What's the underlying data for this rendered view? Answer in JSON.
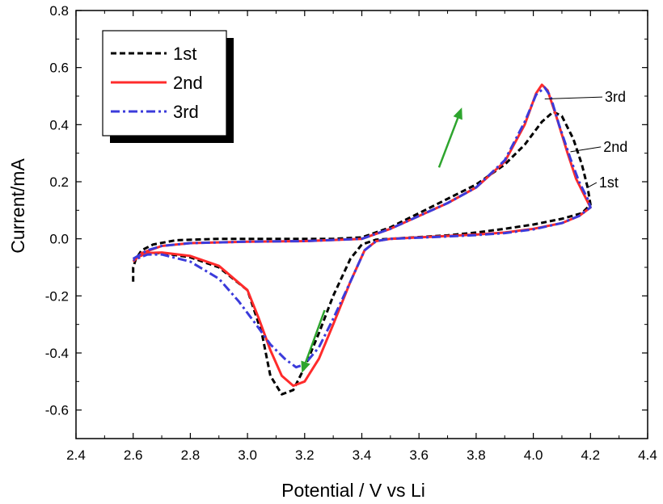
{
  "chart_data": {
    "type": "line",
    "title": "",
    "xlabel": "Potential / V vs Li",
    "ylabel": "Current/mA",
    "xlim": [
      2.4,
      4.4
    ],
    "ylim": [
      -0.7,
      0.8
    ],
    "x_ticks": [
      2.4,
      2.6,
      2.8,
      3.0,
      3.2,
      3.4,
      3.6,
      3.8,
      4.0,
      4.2,
      4.4
    ],
    "y_ticks": [
      -0.6,
      -0.4,
      -0.2,
      0.0,
      0.2,
      0.4,
      0.6,
      0.8
    ],
    "x_tick_labels": [
      "2.4",
      "2.6",
      "2.8",
      "3.0",
      "3.2",
      "3.4",
      "3.6",
      "3.8",
      "4.0",
      "4.2",
      "4.4"
    ],
    "y_tick_labels": [
      "-0.6",
      "-0.4",
      "-0.2",
      "0.0",
      "0.2",
      "0.4",
      "0.6",
      "0.8"
    ],
    "grid": false,
    "legend_position": "top-left",
    "series": [
      {
        "name": "1st",
        "color": "#000000",
        "dash": "dashed",
        "points": [
          [
            2.6,
            -0.15
          ],
          [
            2.6,
            -0.1
          ],
          [
            2.61,
            -0.07
          ],
          [
            2.63,
            -0.04
          ],
          [
            2.67,
            -0.02
          ],
          [
            2.75,
            -0.005
          ],
          [
            2.9,
            0.0
          ],
          [
            3.1,
            0.0
          ],
          [
            3.3,
            0.0
          ],
          [
            3.4,
            0.005
          ],
          [
            3.5,
            0.04
          ],
          [
            3.6,
            0.09
          ],
          [
            3.7,
            0.14
          ],
          [
            3.8,
            0.19
          ],
          [
            3.9,
            0.26
          ],
          [
            3.97,
            0.33
          ],
          [
            4.03,
            0.41
          ],
          [
            4.07,
            0.445
          ],
          [
            4.1,
            0.43
          ],
          [
            4.14,
            0.35
          ],
          [
            4.17,
            0.26
          ],
          [
            4.19,
            0.18
          ],
          [
            4.2,
            0.12
          ],
          [
            4.17,
            0.09
          ],
          [
            4.1,
            0.07
          ],
          [
            4.0,
            0.05
          ],
          [
            3.9,
            0.035
          ],
          [
            3.8,
            0.022
          ],
          [
            3.7,
            0.012
          ],
          [
            3.6,
            0.006
          ],
          [
            3.5,
            0.0
          ],
          [
            3.45,
            -0.003
          ],
          [
            3.4,
            -0.02
          ],
          [
            3.36,
            -0.07
          ],
          [
            3.3,
            -0.2
          ],
          [
            3.25,
            -0.33
          ],
          [
            3.2,
            -0.45
          ],
          [
            3.16,
            -0.53
          ],
          [
            3.12,
            -0.545
          ],
          [
            3.08,
            -0.48
          ],
          [
            3.05,
            -0.33
          ],
          [
            3.0,
            -0.18
          ],
          [
            2.9,
            -0.1
          ],
          [
            2.8,
            -0.065
          ],
          [
            2.7,
            -0.05
          ],
          [
            2.65,
            -0.05
          ],
          [
            2.6,
            -0.07
          ]
        ]
      },
      {
        "name": "2nd",
        "color": "#ff2b2b",
        "dash": "solid",
        "points": [
          [
            2.6,
            -0.08
          ],
          [
            2.63,
            -0.05
          ],
          [
            2.7,
            -0.025
          ],
          [
            2.8,
            -0.015
          ],
          [
            3.0,
            -0.01
          ],
          [
            3.2,
            -0.008
          ],
          [
            3.4,
            0.0
          ],
          [
            3.5,
            0.035
          ],
          [
            3.6,
            0.08
          ],
          [
            3.7,
            0.125
          ],
          [
            3.8,
            0.18
          ],
          [
            3.9,
            0.27
          ],
          [
            3.97,
            0.4
          ],
          [
            4.01,
            0.51
          ],
          [
            4.03,
            0.54
          ],
          [
            4.05,
            0.52
          ],
          [
            4.08,
            0.43
          ],
          [
            4.12,
            0.3
          ],
          [
            4.15,
            0.21
          ],
          [
            4.18,
            0.15
          ],
          [
            4.2,
            0.11
          ],
          [
            4.16,
            0.08
          ],
          [
            4.1,
            0.055
          ],
          [
            4.0,
            0.035
          ],
          [
            3.9,
            0.022
          ],
          [
            3.8,
            0.015
          ],
          [
            3.7,
            0.01
          ],
          [
            3.6,
            0.005
          ],
          [
            3.5,
            0.0
          ],
          [
            3.45,
            -0.008
          ],
          [
            3.41,
            -0.04
          ],
          [
            3.36,
            -0.15
          ],
          [
            3.3,
            -0.3
          ],
          [
            3.25,
            -0.42
          ],
          [
            3.2,
            -0.5
          ],
          [
            3.16,
            -0.515
          ],
          [
            3.12,
            -0.48
          ],
          [
            3.08,
            -0.39
          ],
          [
            3.04,
            -0.28
          ],
          [
            3.0,
            -0.18
          ],
          [
            2.9,
            -0.095
          ],
          [
            2.8,
            -0.06
          ],
          [
            2.7,
            -0.048
          ],
          [
            2.65,
            -0.05
          ],
          [
            2.6,
            -0.07
          ]
        ]
      },
      {
        "name": "3rd",
        "color": "#3b3bdb",
        "dash": "dashdot",
        "points": [
          [
            2.6,
            -0.07
          ],
          [
            2.65,
            -0.04
          ],
          [
            2.7,
            -0.025
          ],
          [
            2.8,
            -0.015
          ],
          [
            3.0,
            -0.01
          ],
          [
            3.2,
            -0.008
          ],
          [
            3.4,
            0.0
          ],
          [
            3.5,
            0.035
          ],
          [
            3.6,
            0.08
          ],
          [
            3.7,
            0.125
          ],
          [
            3.8,
            0.18
          ],
          [
            3.9,
            0.275
          ],
          [
            3.97,
            0.41
          ],
          [
            4.01,
            0.505
          ],
          [
            4.04,
            0.53
          ],
          [
            4.06,
            0.5
          ],
          [
            4.09,
            0.4
          ],
          [
            4.13,
            0.28
          ],
          [
            4.16,
            0.2
          ],
          [
            4.19,
            0.14
          ],
          [
            4.2,
            0.11
          ],
          [
            4.16,
            0.08
          ],
          [
            4.1,
            0.055
          ],
          [
            4.0,
            0.033
          ],
          [
            3.9,
            0.02
          ],
          [
            3.8,
            0.013
          ],
          [
            3.7,
            0.008
          ],
          [
            3.6,
            0.004
          ],
          [
            3.5,
            0.0
          ],
          [
            3.45,
            -0.008
          ],
          [
            3.41,
            -0.04
          ],
          [
            3.36,
            -0.15
          ],
          [
            3.3,
            -0.28
          ],
          [
            3.25,
            -0.38
          ],
          [
            3.2,
            -0.44
          ],
          [
            3.17,
            -0.45
          ],
          [
            3.13,
            -0.42
          ],
          [
            3.08,
            -0.37
          ],
          [
            3.03,
            -0.3
          ],
          [
            2.97,
            -0.22
          ],
          [
            2.9,
            -0.14
          ],
          [
            2.8,
            -0.08
          ],
          [
            2.7,
            -0.055
          ],
          [
            2.65,
            -0.055
          ],
          [
            2.6,
            -0.075
          ]
        ]
      }
    ],
    "annotations": [
      {
        "text": "3rd",
        "x": 4.25,
        "y": 0.48,
        "leader_from": [
          4.04,
          0.49
        ]
      },
      {
        "text": "2nd",
        "x": 4.245,
        "y": 0.305,
        "leader_from": [
          4.13,
          0.305
        ]
      },
      {
        "text": "1st",
        "x": 4.23,
        "y": 0.18,
        "leader_from": [
          4.19,
          0.18
        ]
      }
    ],
    "arrows": [
      {
        "color": "#2ea52e",
        "from": [
          3.67,
          0.25
        ],
        "to": [
          3.75,
          0.46
        ],
        "direction": "up"
      },
      {
        "color": "#2ea52e",
        "from": [
          3.27,
          -0.25
        ],
        "to": [
          3.19,
          -0.47
        ],
        "direction": "down"
      }
    ]
  }
}
